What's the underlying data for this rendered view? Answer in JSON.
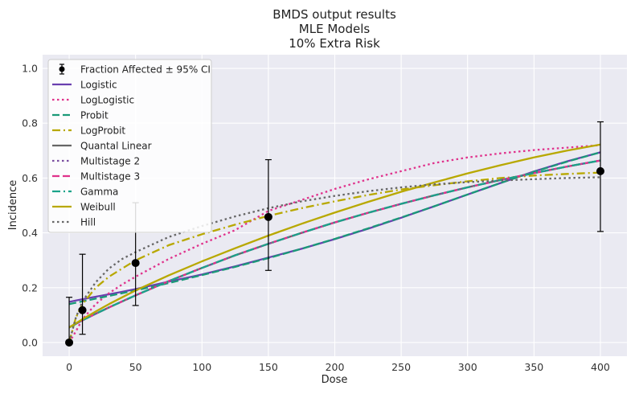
{
  "chart_data": {
    "type": "line",
    "title": [
      "BMDS output results",
      "MLE Models",
      "10% Extra Risk"
    ],
    "xlabel": "Dose",
    "ylabel": "Incidence",
    "xlim": [
      -20,
      420
    ],
    "ylim": [
      -0.05,
      1.05
    ],
    "xticks": [
      0,
      50,
      100,
      150,
      200,
      250,
      300,
      350,
      400
    ],
    "yticks": [
      0.0,
      0.2,
      0.4,
      0.6,
      0.8,
      1.0
    ],
    "xtick_labels": [
      "0",
      "50",
      "100",
      "150",
      "200",
      "250",
      "300",
      "350",
      "400"
    ],
    "ytick_labels": [
      "0.0",
      "0.2",
      "0.4",
      "0.6",
      "0.8",
      "1.0"
    ],
    "grid": true,
    "legend_position": "top-left",
    "observed": {
      "name": "Fraction Affected ± 95% CI",
      "color": "#000000",
      "points": [
        {
          "x": 0,
          "y": 0.0,
          "lo": 0.0,
          "hi": 0.165
        },
        {
          "x": 10,
          "y": 0.118,
          "lo": 0.03,
          "hi": 0.322
        },
        {
          "x": 50,
          "y": 0.29,
          "lo": 0.135,
          "hi": 0.51
        },
        {
          "x": 150,
          "y": 0.458,
          "lo": 0.263,
          "hi": 0.667
        },
        {
          "x": 400,
          "y": 0.625,
          "lo": 0.405,
          "hi": 0.805
        }
      ]
    },
    "x": [
      0,
      5,
      10,
      20,
      30,
      40,
      50,
      75,
      100,
      125,
      150,
      175,
      200,
      225,
      250,
      275,
      300,
      325,
      350,
      375,
      400
    ],
    "series": [
      {
        "name": "Logistic",
        "color": "#6a3fb0",
        "dash": "solid",
        "values": [
          0.148,
          0.153,
          0.158,
          0.167,
          0.176,
          0.185,
          0.195,
          0.222,
          0.248,
          0.278,
          0.31,
          0.342,
          0.377,
          0.415,
          0.455,
          0.497,
          0.54,
          0.582,
          0.624,
          0.661,
          0.694
        ]
      },
      {
        "name": "LogLogistic",
        "color": "#e0328c",
        "dash": "dot",
        "values": [
          0.0,
          0.04,
          0.085,
          0.14,
          0.18,
          0.212,
          0.24,
          0.305,
          0.36,
          0.41,
          0.48,
          0.52,
          0.56,
          0.595,
          0.625,
          0.655,
          0.675,
          0.69,
          0.702,
          0.711,
          0.72
        ]
      },
      {
        "name": "Probit",
        "color": "#1a9a78",
        "dash": "dash",
        "values": [
          0.14,
          0.145,
          0.15,
          0.16,
          0.17,
          0.18,
          0.19,
          0.217,
          0.246,
          0.276,
          0.308,
          0.342,
          0.378,
          0.416,
          0.456,
          0.497,
          0.54,
          0.582,
          0.623,
          0.66,
          0.694
        ]
      },
      {
        "name": "LogProbit",
        "color": "#b8a800",
        "dash": "dashdot",
        "values": [
          0.0,
          0.09,
          0.14,
          0.2,
          0.24,
          0.27,
          0.3,
          0.355,
          0.395,
          0.43,
          0.462,
          0.49,
          0.515,
          0.538,
          0.558,
          0.574,
          0.588,
          0.6,
          0.609,
          0.615,
          0.62
        ]
      },
      {
        "name": "Quantal Linear",
        "color": "#666666",
        "dash": "solid",
        "values": [
          0.055,
          0.068,
          0.081,
          0.105,
          0.128,
          0.15,
          0.172,
          0.224,
          0.272,
          0.318,
          0.36,
          0.4,
          0.438,
          0.473,
          0.506,
          0.537,
          0.566,
          0.593,
          0.618,
          0.642,
          0.664
        ]
      },
      {
        "name": "Multistage 2",
        "color": "#7a4ea0",
        "dash": "dot",
        "values": [
          0.055,
          0.068,
          0.081,
          0.105,
          0.128,
          0.15,
          0.172,
          0.224,
          0.272,
          0.318,
          0.36,
          0.4,
          0.438,
          0.473,
          0.506,
          0.537,
          0.566,
          0.593,
          0.618,
          0.642,
          0.664
        ]
      },
      {
        "name": "Multistage 3",
        "color": "#e0328c",
        "dash": "dash",
        "values": [
          0.055,
          0.068,
          0.081,
          0.105,
          0.128,
          0.15,
          0.172,
          0.224,
          0.272,
          0.318,
          0.36,
          0.4,
          0.438,
          0.473,
          0.506,
          0.537,
          0.566,
          0.593,
          0.618,
          0.642,
          0.664
        ]
      },
      {
        "name": "Gamma",
        "color": "#1aa38a",
        "dash": "dashdot",
        "values": [
          0.055,
          0.068,
          0.081,
          0.105,
          0.128,
          0.15,
          0.172,
          0.224,
          0.272,
          0.318,
          0.36,
          0.4,
          0.438,
          0.473,
          0.506,
          0.537,
          0.566,
          0.593,
          0.618,
          0.642,
          0.664
        ]
      },
      {
        "name": "Weibull",
        "color": "#b8a800",
        "dash": "solid",
        "values": [
          0.055,
          0.07,
          0.085,
          0.113,
          0.14,
          0.165,
          0.19,
          0.245,
          0.296,
          0.344,
          0.39,
          0.433,
          0.474,
          0.513,
          0.55,
          0.584,
          0.617,
          0.647,
          0.675,
          0.7,
          0.722
        ]
      },
      {
        "name": "Hill",
        "color": "#666666",
        "dash": "dot",
        "values": [
          0.0,
          0.09,
          0.15,
          0.22,
          0.27,
          0.305,
          0.33,
          0.385,
          0.425,
          0.46,
          0.49,
          0.515,
          0.535,
          0.552,
          0.566,
          0.577,
          0.585,
          0.591,
          0.596,
          0.6,
          0.603
        ]
      }
    ]
  }
}
